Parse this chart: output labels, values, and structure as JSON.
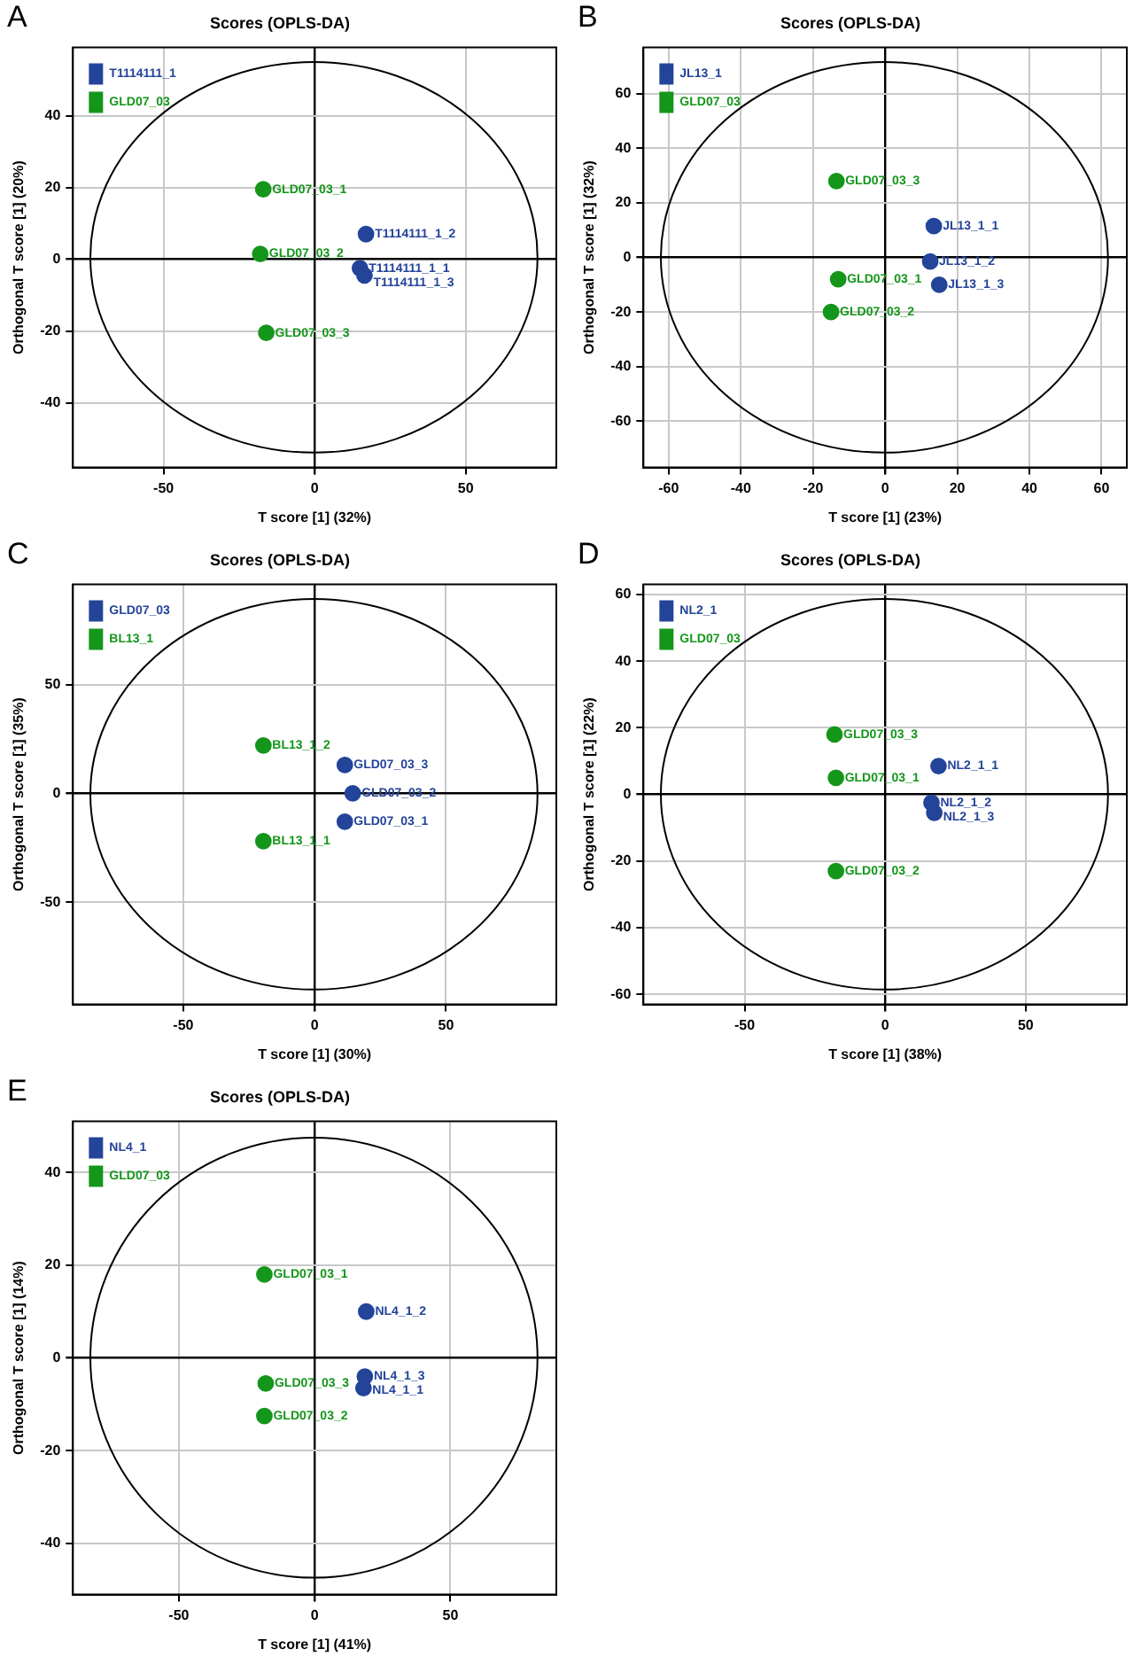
{
  "chart_data": [
    {
      "type": "scatter",
      "title": "Scores (OPLS-DA)",
      "xlabel": "T score [1] (32%)",
      "ylabel": "Orthogonal T score [1] (20%)",
      "annotations": [
        "A"
      ],
      "xlim": [
        -80,
        80
      ],
      "ylim": [
        -58,
        59
      ],
      "xticks": [
        -50,
        0,
        50
      ],
      "yticks": [
        -40,
        -20,
        0,
        20,
        40
      ],
      "grid": true,
      "legend": "top left",
      "marker": "circle",
      "series": [
        {
          "name": "T1114111_1",
          "color": "#24449a",
          "x": [
            17,
            15,
            16.5
          ],
          "values": [
            7,
            -2.5,
            -4.5
          ],
          "value_labels": [
            "T1114111_1_2",
            "T1114111_1_1",
            "T1114111_1_3"
          ]
        },
        {
          "name": "GLD07_03",
          "color": "#14961a",
          "x": [
            -17,
            -18,
            -16
          ],
          "values": [
            19.5,
            1.5,
            -20.5
          ],
          "value_labels": [
            "GLD07_03_1",
            "GLD07_03_2",
            "GLD07_03_3"
          ]
        }
      ]
    },
    {
      "type": "scatter",
      "title": "Scores (OPLS-DA)",
      "xlabel": "T score [1] (23%)",
      "ylabel": "Orthogonal T score [1] (32%)",
      "annotations": [
        "B"
      ],
      "xlim": [
        -67,
        67
      ],
      "ylim": [
        -77,
        77
      ],
      "xticks": [
        -60,
        -40,
        -20,
        0,
        20,
        40,
        60
      ],
      "yticks": [
        -60,
        -40,
        -20,
        0,
        20,
        40,
        60
      ],
      "grid": true,
      "legend": "top left",
      "marker": "circle",
      "series": [
        {
          "name": "JL13_1",
          "color": "#24449a",
          "x": [
            13.5,
            12.5,
            15
          ],
          "values": [
            11.5,
            -1.5,
            -10
          ],
          "value_labels": [
            "JL13_1_1",
            "JL13_1_2",
            "JL13_1_3"
          ]
        },
        {
          "name": "GLD07_03",
          "color": "#14961a",
          "x": [
            -13.5,
            -13,
            -15
          ],
          "values": [
            28,
            -8,
            -20
          ],
          "value_labels": [
            "GLD07_03_3",
            "GLD07_03_1",
            "GLD07_03_2"
          ]
        }
      ]
    },
    {
      "type": "scatter",
      "title": "Scores (OPLS-DA)",
      "xlabel": "T score [1] (30%)",
      "ylabel": "Orthogonal T score [1] (35%)",
      "annotations": [
        "C"
      ],
      "xlim": [
        -92,
        92
      ],
      "ylim": [
        -97,
        96
      ],
      "xticks": [
        -50,
        0,
        50
      ],
      "yticks": [
        -50,
        0,
        50
      ],
      "grid": true,
      "legend": "top left",
      "marker": "circle",
      "series": [
        {
          "name": "GLD07_03",
          "color": "#24449a",
          "x": [
            11.5,
            14.5,
            11.5
          ],
          "values": [
            13,
            0,
            -13
          ],
          "value_labels": [
            "GLD07_03_3",
            "GLD07_03_2",
            "GLD07_03_1"
          ]
        },
        {
          "name": "BL13_1",
          "color": "#14961a",
          "x": [
            -19.5,
            -19.5
          ],
          "values": [
            22,
            -22
          ],
          "value_labels": [
            "BL13_1_2",
            "BL13_1_1"
          ]
        }
      ]
    },
    {
      "type": "scatter",
      "title": "Scores (OPLS-DA)",
      "xlabel": "T score [1] (38%)",
      "ylabel": "Orthogonal T score [1] (22%)",
      "annotations": [
        "D"
      ],
      "xlim": [
        -86,
        86
      ],
      "ylim": [
        -63,
        63
      ],
      "xticks": [
        -50,
        0,
        50
      ],
      "yticks": [
        -60,
        -40,
        -20,
        0,
        20,
        40,
        60
      ],
      "grid": true,
      "legend": "top left",
      "marker": "circle",
      "series": [
        {
          "name": "NL2_1",
          "color": "#24449a",
          "x": [
            19,
            16.5,
            17.5
          ],
          "values": [
            8.5,
            -2.5,
            -5.5
          ],
          "value_labels": [
            "NL2_1_1",
            "NL2_1_2",
            "NL2_1_3"
          ]
        },
        {
          "name": "GLD07_03",
          "color": "#14961a",
          "x": [
            -18,
            -17.5,
            -17.5
          ],
          "values": [
            18,
            5,
            -23
          ],
          "value_labels": [
            "GLD07_03_3",
            "GLD07_03_1",
            "GLD07_03_2"
          ]
        }
      ]
    },
    {
      "type": "scatter",
      "title": "Scores (OPLS-DA)",
      "xlabel": "T score [1] (41%)",
      "ylabel": "Orthogonal T score [1] (14%)",
      "annotations": [
        "E"
      ],
      "xlim": [
        -89,
        89
      ],
      "ylim": [
        -51,
        51
      ],
      "xticks": [
        -50,
        0,
        50
      ],
      "yticks": [
        -40,
        -20,
        0,
        20,
        40
      ],
      "grid": true,
      "legend": "top left",
      "marker": "circle",
      "series": [
        {
          "name": "NL4_1",
          "color": "#24449a",
          "x": [
            19,
            18.5,
            18
          ],
          "values": [
            10,
            -4,
            -6.5
          ],
          "value_labels": [
            "NL4_1_2",
            "NL4_1_3",
            "NL4_1_1"
          ]
        },
        {
          "name": "GLD07_03",
          "color": "#14961a",
          "x": [
            -18.5,
            -18,
            -18.5
          ],
          "values": [
            18,
            -5.5,
            -12.5
          ],
          "value_labels": [
            "GLD07_03_1",
            "GLD07_03_3",
            "GLD07_03_2"
          ]
        }
      ]
    }
  ]
}
